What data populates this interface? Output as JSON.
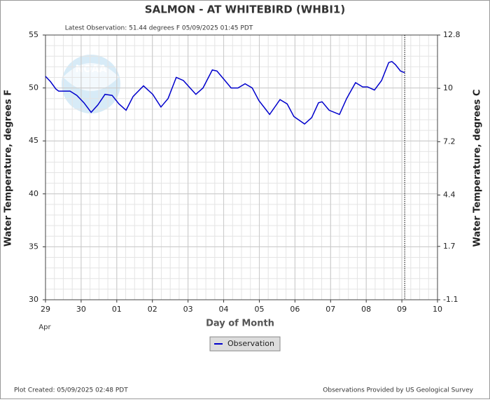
{
  "chart_data": {
    "type": "line",
    "title": "SALMON - AT WHITEBIRD  (WHBI1)",
    "subtitle": "Latest Observation: 51.44 degrees F 05/09/2025 01:45 PDT",
    "ylabel": "Water Temperature, degrees F",
    "y2label": "Water Temperature, degrees C",
    "xlabel": "Day of Month",
    "month_label": "Apr",
    "footer_left": "Plot Created: 05/09/2025 02:48 PDT",
    "footer_right": "Observations Provided by US Geological Survey",
    "xlim": [
      0,
      11
    ],
    "xticks": [
      {
        "value": 0,
        "label": "29"
      },
      {
        "value": 1,
        "label": "30"
      },
      {
        "value": 2,
        "label": "01"
      },
      {
        "value": 3,
        "label": "02"
      },
      {
        "value": 4,
        "label": "03"
      },
      {
        "value": 5,
        "label": "04"
      },
      {
        "value": 6,
        "label": "05"
      },
      {
        "value": 7,
        "label": "06"
      },
      {
        "value": 8,
        "label": "07"
      },
      {
        "value": 9,
        "label": "08"
      },
      {
        "value": 10,
        "label": "09"
      },
      {
        "value": 11,
        "label": "10"
      }
    ],
    "ylim": [
      30,
      55
    ],
    "yticks": [
      30,
      35,
      40,
      45,
      50,
      55
    ],
    "y2lim": [
      -1.1,
      12.8
    ],
    "y2ticks": [
      -1.1,
      1.7,
      4.4,
      7.2,
      10,
      12.8
    ],
    "grid": true,
    "latest_observation_x": 10.08,
    "series": [
      {
        "name": "Observation",
        "color": "#0000cc",
        "x": [
          0,
          0.14,
          0.29,
          0.37,
          0.69,
          0.88,
          1.08,
          1.28,
          1.47,
          1.67,
          1.87,
          2.06,
          2.26,
          2.46,
          2.75,
          3.01,
          3.24,
          3.44,
          3.67,
          3.87,
          4.03,
          4.22,
          4.42,
          4.68,
          4.81,
          5.01,
          5.21,
          5.4,
          5.6,
          5.8,
          5.99,
          6.29,
          6.58,
          6.78,
          6.97,
          7.27,
          7.47,
          7.66,
          7.76,
          7.96,
          8.25,
          8.45,
          8.7,
          8.9,
          9.04,
          9.23,
          9.43,
          9.63,
          9.72,
          9.82,
          9.96,
          10.08
        ],
        "values": [
          51.1,
          50.6,
          49.9,
          49.7,
          49.7,
          49.3,
          48.6,
          47.7,
          48.4,
          49.4,
          49.3,
          48.5,
          47.9,
          49.2,
          50.2,
          49.4,
          48.2,
          49.0,
          51.0,
          50.7,
          50.1,
          49.4,
          50.0,
          51.7,
          51.6,
          50.8,
          50.0,
          50.0,
          50.4,
          50.0,
          48.8,
          47.5,
          48.9,
          48.5,
          47.3,
          46.6,
          47.2,
          48.6,
          48.7,
          47.9,
          47.5,
          49.0,
          50.5,
          50.1,
          50.1,
          49.8,
          50.7,
          52.4,
          52.5,
          52.2,
          51.6,
          51.44
        ]
      }
    ]
  }
}
